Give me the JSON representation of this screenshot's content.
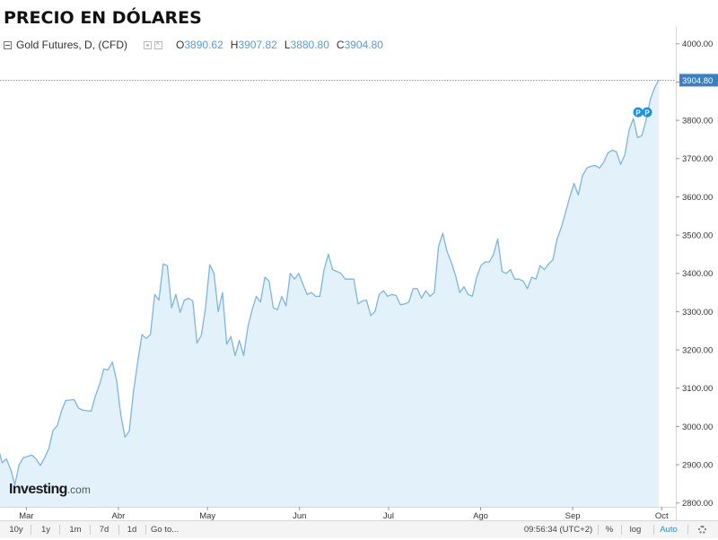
{
  "page": {
    "title": "PRECIO EN DÓLARES"
  },
  "legend": {
    "instrument": "Gold Futures, D, (CFD)",
    "open_label": "O",
    "open_value": "3890.62",
    "high_label": "H",
    "high_value": "3907.82",
    "low_label": "L",
    "low_value": "3880.80",
    "close_label": "C",
    "close_value": "3904.80"
  },
  "colors": {
    "line": "#7db6e0",
    "fill": "#e3f1fb",
    "accent": "#2a8fd8",
    "last_price_bg": "#3a7fbf",
    "marker": "#1e90e0"
  },
  "last_price_label": "3904.80",
  "markers": [
    "P",
    "P"
  ],
  "watermark": {
    "brand": "Investing",
    "suffix": ".com"
  },
  "bottom_bar": {
    "ranges": [
      "10y",
      "1y",
      "1m",
      "7d",
      "1d"
    ],
    "goto": "Go to...",
    "time": "09:56:34 (UTC+2)",
    "percent": "%",
    "log": "log",
    "auto": "Auto",
    "settings_icon": "gear-icon"
  },
  "chart_data": {
    "type": "area",
    "series": [
      {
        "values": [
          2952,
          2947,
          2905,
          2915,
          2888,
          2848,
          2900,
          2918,
          2922,
          2925,
          2915,
          2898,
          2918,
          2942,
          2990,
          3002,
          3040,
          3068,
          3069,
          3070,
          3048,
          3043,
          3041,
          3040,
          3080,
          3110,
          3150,
          3148,
          3168,
          3120,
          3030,
          2972,
          2988,
          3092,
          3170,
          3240,
          3230,
          3240,
          3345,
          3330,
          3425,
          3420,
          3310,
          3345,
          3298,
          3330,
          3335,
          3328,
          3218,
          3238,
          3310,
          3423,
          3400,
          3300,
          3350,
          3215,
          3235,
          3185,
          3225,
          3185,
          3260,
          3305,
          3340,
          3325,
          3390,
          3380,
          3310,
          3305,
          3340,
          3315,
          3400,
          3385,
          3400,
          3372,
          3345,
          3350,
          3340,
          3340,
          3410,
          3450,
          3410,
          3405,
          3400,
          3385,
          3385,
          3385,
          3320,
          3328,
          3330,
          3290,
          3300,
          3345,
          3355,
          3340,
          3345,
          3342,
          3318,
          3320,
          3325,
          3360,
          3360,
          3335,
          3355,
          3340,
          3350,
          3470,
          3505,
          3458,
          3430,
          3395,
          3350,
          3365,
          3345,
          3340,
          3390,
          3420,
          3430,
          3430,
          3450,
          3490,
          3405,
          3400,
          3410,
          3385,
          3385,
          3380,
          3360,
          3390,
          3385,
          3420,
          3410,
          3425,
          3435,
          3490,
          3520,
          3560,
          3600,
          3635,
          3605,
          3655,
          3675,
          3680,
          3682,
          3675,
          3690,
          3715,
          3722,
          3718,
          3685,
          3710,
          3775,
          3805,
          3755,
          3760,
          3800,
          3855,
          3885,
          3905
        ]
      }
    ],
    "x_start": "2025-02-18",
    "x_end": "2025-09-30",
    "month_ticks": [
      "Mar",
      "Abr",
      "May",
      "Jun",
      "Jul",
      "Ago",
      "Sep",
      "Oct"
    ],
    "y_ticks": [
      2800,
      2900,
      3000,
      3100,
      3200,
      3300,
      3400,
      3500,
      3600,
      3700,
      3800,
      3900,
      4000
    ],
    "y_tick_labels": [
      "2800.00",
      "2900.00",
      "3000.00",
      "3100.00",
      "3200.00",
      "3300.00",
      "3400.00",
      "3500.00",
      "3600.00",
      "3700.00",
      "3800.00",
      "3900.00",
      "4000.00"
    ],
    "ylim": [
      2790,
      4030
    ],
    "last_value": 3904.8,
    "grid": false
  }
}
